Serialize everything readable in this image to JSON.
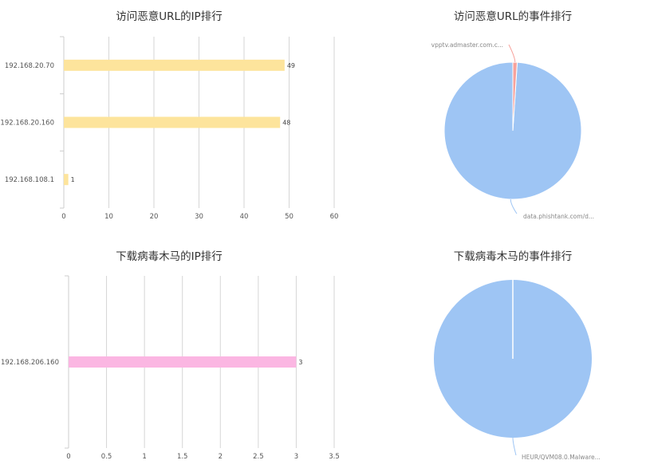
{
  "chart_data": [
    {
      "id": "url-ip",
      "type": "bar",
      "orientation": "horizontal",
      "title": "访问恶意URL的IP排行",
      "categories": [
        "192.168.20.70",
        "192.168.20.160",
        "192.168.108.1"
      ],
      "values": [
        49,
        48,
        1
      ],
      "xlim": [
        0,
        60
      ],
      "ticks": [
        0,
        10,
        20,
        30,
        40,
        50,
        60
      ],
      "tick_labels": [
        "0",
        "10",
        "20",
        "30",
        "40",
        "50",
        "60"
      ],
      "grid": true,
      "color": "#fde49c"
    },
    {
      "id": "url-event",
      "type": "pie",
      "title": "访问恶意URL的事件排行",
      "slices": [
        {
          "label": "data.phishtank.com/d...",
          "value": 97,
          "color": "#9ec5f4"
        },
        {
          "label": "vpptv.admaster.com.c...",
          "value": 1,
          "color": "#f7a29c"
        }
      ]
    },
    {
      "id": "trojan-ip",
      "type": "bar",
      "orientation": "horizontal",
      "title": "下载病毒木马的IP排行",
      "categories": [
        "192.168.206.160"
      ],
      "values": [
        3
      ],
      "xlim": [
        0,
        3.5
      ],
      "ticks": [
        0,
        0.5,
        1,
        1.5,
        2,
        2.5,
        3,
        3.5
      ],
      "tick_labels": [
        "0",
        "0.5",
        "1",
        "1.5",
        "2",
        "2.5",
        "3",
        "3.5"
      ],
      "grid": true,
      "color": "#fbb6e2"
    },
    {
      "id": "trojan-event",
      "type": "pie",
      "title": "下载病毒木马的事件排行",
      "slices": [
        {
          "label": "HEUR/QVM08.0.Malware...",
          "value": 3,
          "color": "#9ec5f4"
        }
      ]
    }
  ]
}
